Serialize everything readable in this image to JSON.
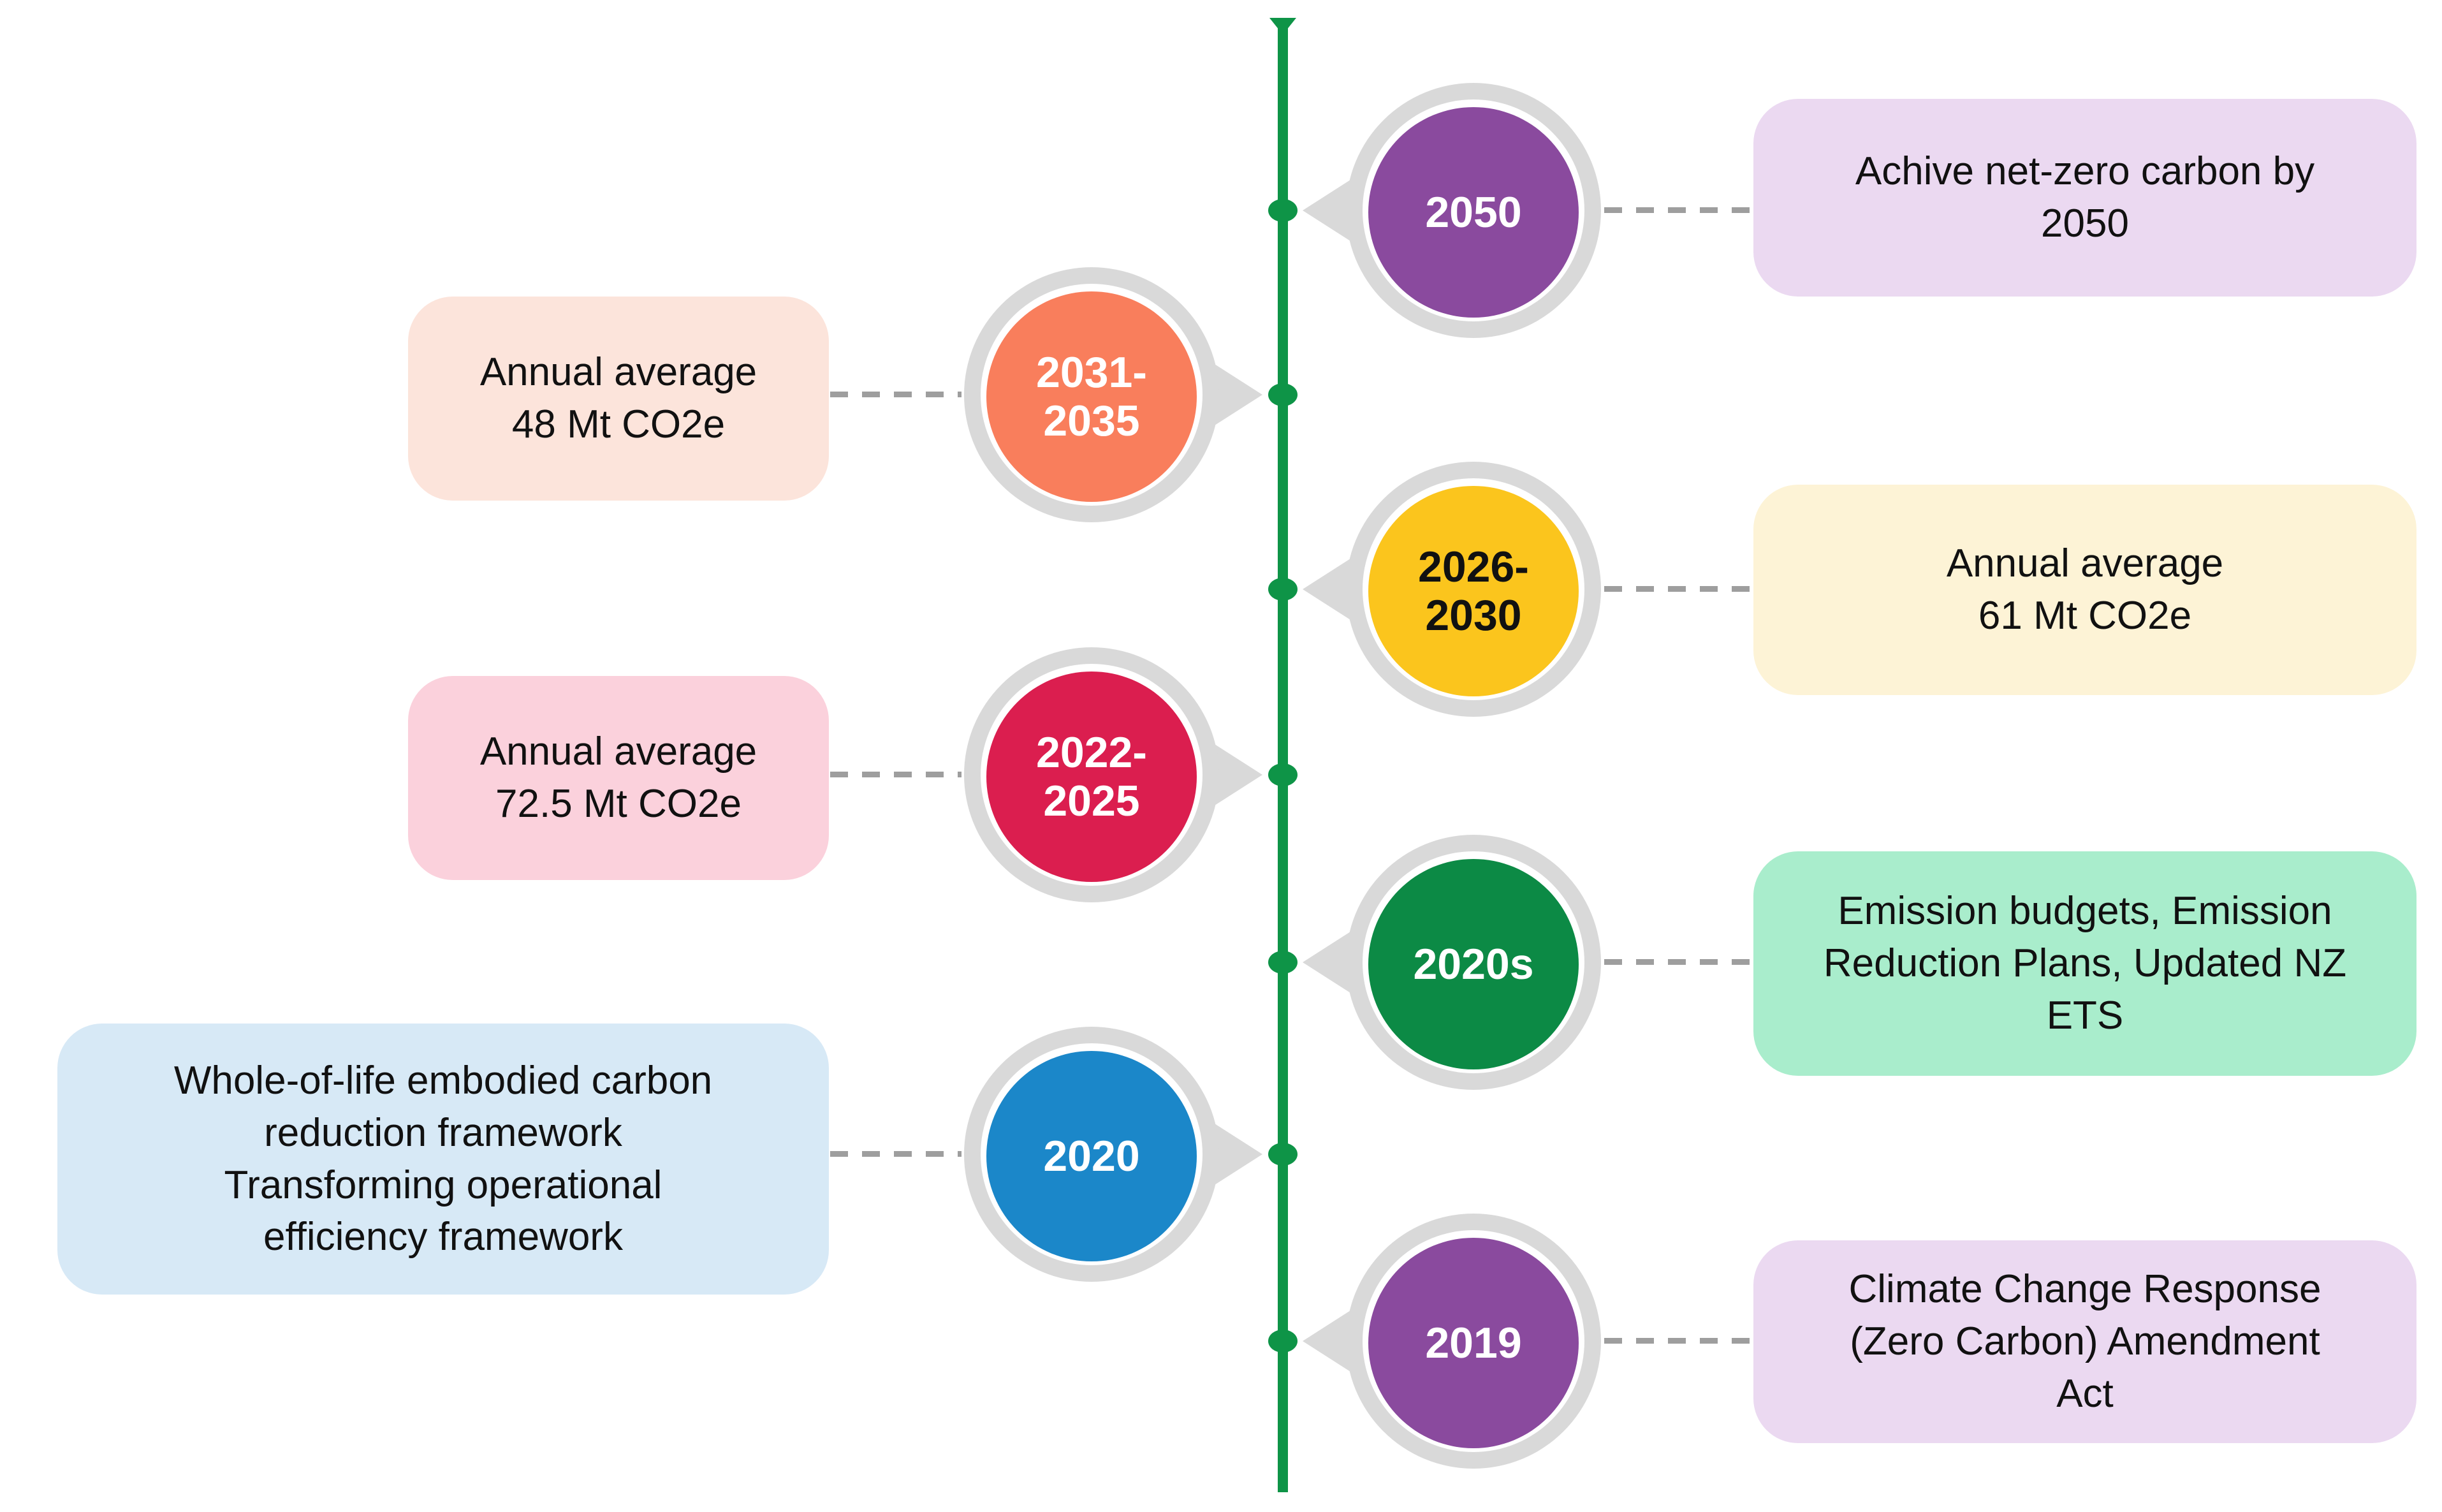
{
  "diagram": {
    "type": "vertical-timeline-infographic",
    "axis_color": "#0E9447",
    "ring_color": "#D9D9D9",
    "connector_color": "#9E9E9E",
    "background": "#FFFFFF"
  },
  "timeline": {
    "events": [
      {
        "year_label": "2050",
        "side": "right",
        "circle_color": "#8A4A9E",
        "year_text_color": "#FFFFFF",
        "box_bg": "#EBD9F1",
        "description": "Achive net-zero carbon by\n2050"
      },
      {
        "year_label": "2031-\n2035",
        "side": "left",
        "circle_color": "#F97E5C",
        "year_text_color": "#FFFFFF",
        "box_bg": "#FCE4DB",
        "description": "Annual average\n48 Mt CO2e"
      },
      {
        "year_label": "2026-\n2030",
        "side": "right",
        "circle_color": "#FBC51D",
        "year_text_color": "#111111",
        "box_bg": "#FDF3D6",
        "description": "Annual average\n61 Mt CO2e"
      },
      {
        "year_label": "2022-\n2025",
        "side": "left",
        "circle_color": "#DB1E4F",
        "year_text_color": "#FFFFFF",
        "box_bg": "#FBD1DC",
        "description": "Annual average\n72.5 Mt CO2e"
      },
      {
        "year_label": "2020s",
        "side": "right",
        "circle_color": "#0C8A45",
        "year_text_color": "#FFFFFF",
        "box_bg": "#A9EDCC",
        "description": "Emission budgets, Emission\nReduction Plans, Updated NZ\nETS"
      },
      {
        "year_label": "2020",
        "side": "left",
        "circle_color": "#1B87C9",
        "year_text_color": "#FFFFFF",
        "box_bg": "#D7E9F6",
        "description": "Whole-of-life embodied carbon\nreduction framework\nTransforming operational\nefficiency framework"
      },
      {
        "year_label": "2019",
        "side": "right",
        "circle_color": "#8A4A9E",
        "year_text_color": "#FFFFFF",
        "box_bg": "#EBD9F1",
        "description": "Climate Change Response\n(Zero Carbon) Amendment\nAct"
      }
    ]
  }
}
